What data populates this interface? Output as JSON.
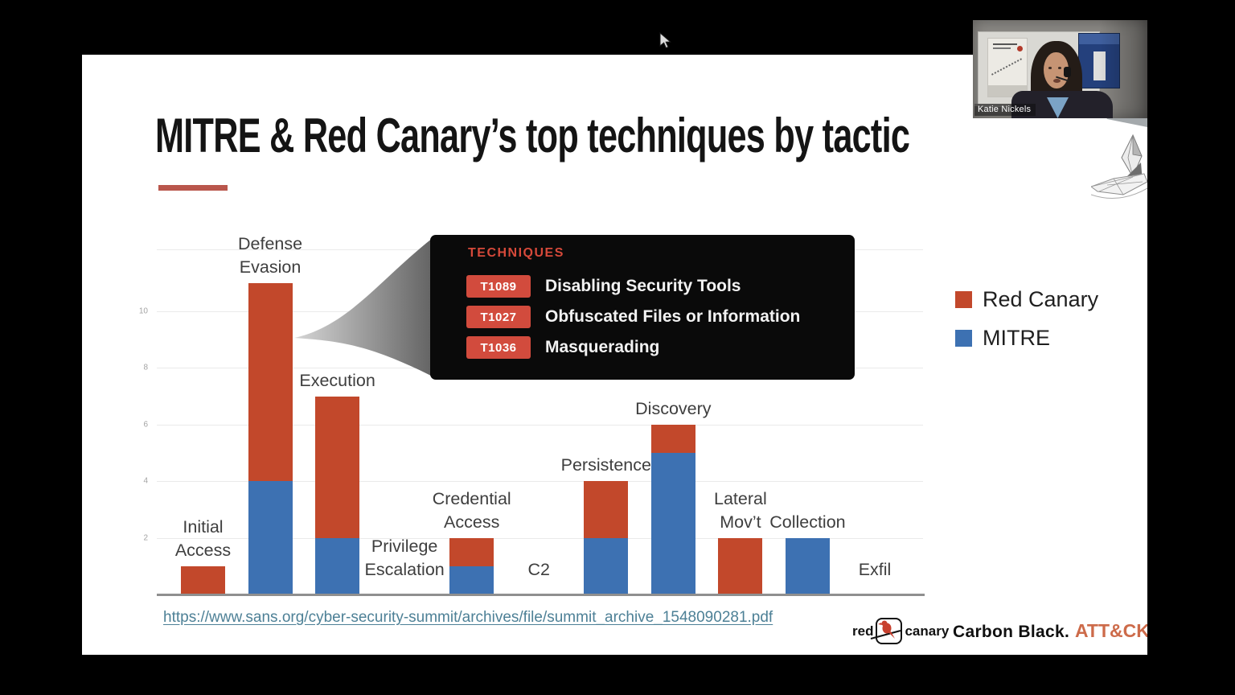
{
  "presenter": {
    "name": "Katie Nickels"
  },
  "slide": {
    "title": "MITRE & Red Canary’s top techniques by tactic",
    "source_url": "https://www.sans.org/cyber-security-summit/archives/file/summit_archive_1548090281.pdf"
  },
  "callout": {
    "heading": "TECHNIQUES",
    "heading_color": "#d6493a",
    "badge_color": "#d24b3d",
    "background": "#0a0a0a",
    "items": [
      {
        "id": "T1089",
        "name": "Disabling Security Tools"
      },
      {
        "id": "T1027",
        "name": "Obfuscated Files or Information"
      },
      {
        "id": "T1036",
        "name": "Masquerading"
      }
    ]
  },
  "legend": [
    {
      "label": "Red Canary",
      "color": "#c2482b"
    },
    {
      "label": "MITRE",
      "color": "#3d71b2"
    }
  ],
  "chart_data": {
    "type": "bar",
    "stacked": true,
    "title": "MITRE & Red Canary’s top techniques by tactic",
    "xlabel": "",
    "ylabel": "",
    "categories": [
      "Initial\nAccess",
      "Defense\nEvasion",
      "Execution",
      "Privilege\nEscalation",
      "Credential\nAccess",
      "C2",
      "Persistence",
      "Discovery",
      "Lateral\nMov’t",
      "Collection",
      "Exfil"
    ],
    "series": [
      {
        "name": "MITRE",
        "color": "#3d71b2",
        "values": [
          0,
          4,
          2,
          0,
          1,
          0,
          2,
          5,
          0,
          2,
          0
        ]
      },
      {
        "name": "Red Canary",
        "color": "#c2482b",
        "values": [
          1,
          7,
          5,
          0,
          1,
          0,
          2,
          1,
          2,
          0,
          0
        ]
      }
    ],
    "yticks": [
      2,
      4,
      6,
      8,
      10
    ],
    "ylim": [
      0,
      12.2
    ],
    "grid": true,
    "legend_position": "right"
  },
  "footer_logos": {
    "red_canary": {
      "left": "red",
      "right": "canary"
    },
    "carbon_black": "Carbon Black.",
    "attack": "ATT&CK",
    "attack_tm": "™"
  }
}
